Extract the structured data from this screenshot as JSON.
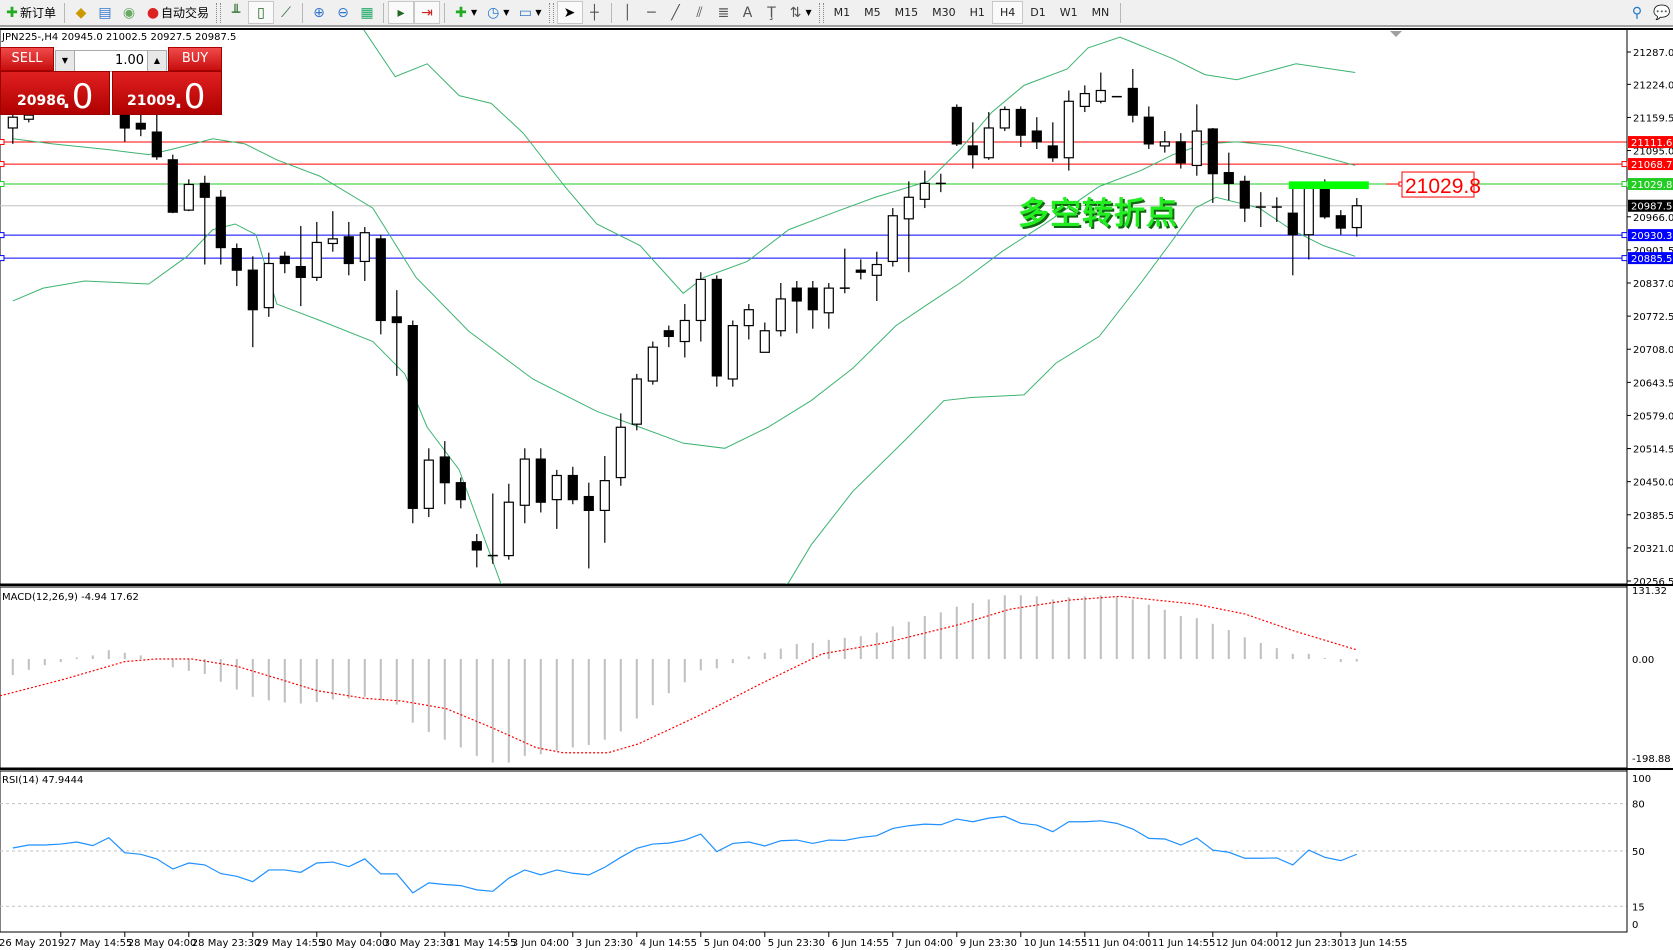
{
  "toolbar": {
    "new_order": "新订单",
    "auto_trading": "自动交易",
    "timeframes": [
      "M1",
      "M5",
      "M15",
      "M30",
      "H1",
      "H4",
      "D1",
      "W1",
      "MN"
    ],
    "active_timeframe": "H4"
  },
  "chart": {
    "header": "JPN225-,H4  20945.0 21002.5 20927.5 20987.5",
    "annotation": "多空转折点",
    "price_tag": "21029.8",
    "colors": {
      "bull_fill": "#ffffff",
      "bear_fill": "#000000",
      "bands": "#3cb371",
      "macd_hist": "#c0c0c0",
      "macd_signal": "#ff0000",
      "rsi": "#1e90ff",
      "highlight_box": "#00ff00"
    },
    "highlight_box": {
      "from_bar": 80,
      "to_bar": 84.5,
      "top": 21035,
      "bottom": 21020
    },
    "price_range": [
      20256.5,
      21287.0
    ],
    "price_axis": [
      "21287.0",
      "21224.0",
      "21159.5",
      "21095.0",
      "20966.0",
      "20901.5",
      "20837.0",
      "20772.5",
      "20708.0",
      "20643.5",
      "20579.0",
      "20514.5",
      "20450.0",
      "20385.5",
      "20321.0",
      "20256.5"
    ],
    "levels": [
      {
        "price": 21111.6,
        "label": "21111.6",
        "color": "#ff0000"
      },
      {
        "price": 21068.7,
        "label": "21068.7",
        "color": "#ff0000"
      },
      {
        "price": 21029.8,
        "label": "21029.8",
        "color": "#22cc22"
      },
      {
        "price": 20987.5,
        "label": "20987.5",
        "color": "#000000",
        "line": "#c0c0c0"
      },
      {
        "price": 20930.3,
        "label": "20930.3",
        "color": "#0000ff"
      },
      {
        "price": 20885.5,
        "label": "20885.5",
        "color": "#0000ff"
      }
    ],
    "candles": [
      [
        21139,
        21175,
        21108,
        21160
      ],
      [
        21156,
        21181,
        21150,
        21164
      ],
      null,
      null,
      null,
      null,
      null,
      [
        21164,
        21181,
        21112,
        21139
      ],
      [
        21148,
        21181,
        21123,
        21137
      ],
      [
        21131,
        21170,
        21077,
        21083
      ],
      [
        21077,
        21087,
        20973,
        20975
      ],
      [
        20979,
        21039,
        20977,
        21029
      ],
      [
        21031,
        21046,
        20873,
        21004
      ],
      [
        21004,
        21018,
        20873,
        20906
      ],
      [
        20904,
        20914,
        20831,
        20862
      ],
      [
        20862,
        20889,
        20712,
        20785
      ],
      [
        20789,
        20896,
        20771,
        20875
      ],
      [
        20889,
        20898,
        20856,
        20875
      ],
      [
        20869,
        20948,
        20792,
        20848
      ],
      [
        20848,
        20956,
        20841,
        20916
      ],
      [
        20914,
        20977,
        20898,
        20923
      ],
      [
        20927,
        20956,
        20852,
        20875
      ],
      [
        20879,
        20946,
        20841,
        20935
      ],
      [
        20923,
        20931,
        20737,
        20764
      ],
      [
        20771,
        20823,
        20656,
        20760
      ],
      [
        20754,
        20764,
        20369,
        20398
      ],
      [
        20398,
        20515,
        20381,
        20492
      ],
      [
        20498,
        20529,
        20406,
        20448
      ],
      [
        20448,
        20458,
        20398,
        20415
      ],
      [
        20333,
        20348,
        20283,
        20317
      ],
      [
        20306,
        20427,
        20290,
        20306
      ],
      [
        20306,
        20446,
        20298,
        20410
      ],
      [
        20404,
        20515,
        20369,
        20494
      ],
      [
        20494,
        20515,
        20390,
        20410
      ],
      [
        20415,
        20473,
        20358,
        20462
      ],
      [
        20462,
        20479,
        20406,
        20415
      ],
      [
        20421,
        20448,
        20281,
        20394
      ],
      [
        20394,
        20500,
        20331,
        20452
      ],
      [
        20458,
        20583,
        20442,
        20556
      ],
      [
        20562,
        20660,
        20550,
        20650
      ],
      [
        20646,
        20723,
        20639,
        20712
      ],
      [
        20744,
        20754,
        20712,
        20733
      ],
      [
        20723,
        20796,
        20692,
        20764
      ],
      [
        20764,
        20858,
        20723,
        20844
      ],
      [
        20844,
        20852,
        20635,
        20656
      ],
      [
        20650,
        20764,
        20635,
        20754
      ],
      [
        20754,
        20796,
        20727,
        20785
      ],
      [
        20702,
        20760,
        20702,
        20744
      ],
      [
        20744,
        20837,
        20733,
        20806
      ],
      [
        20827,
        20841,
        20739,
        20802
      ],
      [
        20827,
        20841,
        20748,
        20785
      ],
      [
        20779,
        20837,
        20748,
        20827
      ],
      [
        20827,
        20904,
        20817,
        20827
      ],
      [
        20862,
        20883,
        20844,
        20858
      ],
      [
        20852,
        20898,
        20802,
        20873
      ],
      [
        20879,
        20983,
        20869,
        20968
      ],
      [
        20962,
        21035,
        20858,
        21004
      ],
      [
        21000,
        21056,
        20983,
        21031
      ],
      [
        21031,
        21050,
        21014,
        21031
      ],
      [
        21179,
        21185,
        21104,
        21108
      ],
      [
        21104,
        21150,
        21060,
        21087
      ],
      [
        21081,
        21170,
        21077,
        21139
      ],
      [
        21139,
        21181,
        21133,
        21175
      ],
      [
        21175,
        21181,
        21102,
        21125
      ],
      [
        21133,
        21160,
        21098,
        21112
      ],
      [
        21104,
        21150,
        21073,
        21081
      ],
      [
        21081,
        21212,
        21056,
        21191
      ],
      [
        21181,
        21222,
        21170,
        21206
      ],
      [
        21191,
        21247,
        21187,
        21212
      ],
      [
        21200,
        21200,
        21200,
        21200
      ],
      [
        21216,
        21254,
        21150,
        21164
      ],
      [
        21160,
        21181,
        21098,
        21108
      ],
      [
        21104,
        21133,
        21091,
        21112
      ],
      [
        21112,
        21129,
        21060,
        21071
      ],
      [
        21066,
        21185,
        21046,
        21133
      ],
      [
        21137,
        21139,
        20993,
        21050
      ],
      [
        21052,
        21091,
        20998,
        21031
      ],
      [
        21035,
        21046,
        20956,
        20983
      ],
      [
        20985,
        21014,
        20946,
        20985
      ],
      [
        20985,
        21004,
        20956,
        20985
      ],
      [
        20973,
        21031,
        20852,
        20931
      ],
      [
        20931,
        21031,
        20883,
        21025
      ],
      [
        21025,
        21039,
        20962,
        20966
      ],
      [
        20968,
        20979,
        20931,
        20944
      ],
      [
        20945,
        21002.5,
        20927.5,
        20987.5
      ]
    ],
    "bollinger": {
      "upper": [
        [
          0,
          21450
        ],
        [
          8,
          21440
        ],
        [
          14.5,
          21420
        ],
        [
          20,
          21420
        ],
        [
          23.9,
          21239
        ],
        [
          25.9,
          21264
        ],
        [
          27.9,
          21202
        ],
        [
          29.9,
          21187
        ],
        [
          31.9,
          21129
        ],
        [
          34.5,
          21025
        ],
        [
          36.5,
          20952
        ],
        [
          39.2,
          20910
        ],
        [
          41.9,
          20817
        ],
        [
          43.2,
          20848
        ],
        [
          45.9,
          20879
        ],
        [
          48.5,
          20941
        ],
        [
          51.2,
          20973
        ],
        [
          53.9,
          21004
        ],
        [
          57.2,
          21035
        ],
        [
          59.2,
          21097
        ],
        [
          61.2,
          21170
        ],
        [
          63.2,
          21222
        ],
        [
          65.9,
          21254
        ],
        [
          67.2,
          21295
        ],
        [
          69.2,
          21316
        ],
        [
          72.5,
          21274
        ],
        [
          74.5,
          21243
        ],
        [
          76.5,
          21233
        ],
        [
          80.2,
          21264
        ],
        [
          83.9,
          21247
        ]
      ],
      "middle": [
        [
          0,
          21118
        ],
        [
          2.5,
          21108
        ],
        [
          5.9,
          21097
        ],
        [
          8.5,
          21087
        ],
        [
          9.9,
          21097
        ],
        [
          12.5,
          21118
        ],
        [
          14.5,
          21108
        ],
        [
          16.5,
          21077
        ],
        [
          19.2,
          21045
        ],
        [
          22.5,
          20983
        ],
        [
          25.2,
          20848
        ],
        [
          28.5,
          20743
        ],
        [
          32.5,
          20650
        ],
        [
          36.5,
          20587
        ],
        [
          39.2,
          20556
        ],
        [
          41.9,
          20525
        ],
        [
          44.5,
          20515
        ],
        [
          47.2,
          20556
        ],
        [
          49.9,
          20608
        ],
        [
          52.5,
          20671
        ],
        [
          55.2,
          20754
        ],
        [
          57.2,
          20796
        ],
        [
          59.2,
          20837
        ],
        [
          61.9,
          20900
        ],
        [
          64.5,
          20952
        ],
        [
          67.9,
          21025
        ],
        [
          70.5,
          21056
        ],
        [
          72.5,
          21087
        ],
        [
          74.5,
          21108
        ],
        [
          76.5,
          21112
        ],
        [
          79.2,
          21104
        ],
        [
          81.9,
          21083
        ],
        [
          83.9,
          21066
        ]
      ],
      "lower": [
        [
          0,
          20802
        ],
        [
          1.9,
          20827
        ],
        [
          4.5,
          20841
        ],
        [
          8.5,
          20835
        ],
        [
          10.9,
          20889
        ],
        [
          12.5,
          20941
        ],
        [
          13.9,
          20952
        ],
        [
          15.2,
          20931
        ],
        [
          16.5,
          20796
        ],
        [
          19.2,
          20764
        ],
        [
          22.5,
          20723
        ],
        [
          24.5,
          20660
        ],
        [
          25.9,
          20556
        ],
        [
          27.9,
          20473
        ],
        [
          30.5,
          20252
        ],
        [
          32.5,
          20202
        ],
        [
          36.5,
          20140
        ],
        [
          40.5,
          20119
        ],
        [
          44.5,
          20161
        ],
        [
          47.2,
          20223
        ],
        [
          48.5,
          20254
        ],
        [
          49.9,
          20327
        ],
        [
          52.5,
          20431
        ],
        [
          55.9,
          20535
        ],
        [
          58.2,
          20608
        ],
        [
          59.9,
          20614
        ],
        [
          63.2,
          20619
        ],
        [
          65.2,
          20681
        ],
        [
          67.9,
          20733
        ],
        [
          70.5,
          20837
        ],
        [
          72.5,
          20921
        ],
        [
          73.9,
          20983
        ],
        [
          75.2,
          21004
        ],
        [
          77.9,
          20983
        ],
        [
          79.9,
          20941
        ],
        [
          81.9,
          20910
        ],
        [
          83.9,
          20889
        ]
      ]
    }
  },
  "trade_panel": {
    "sell": "SELL",
    "buy": "BUY",
    "lot": "1.00",
    "bid_main": "20986",
    "bid_frac": ".0",
    "ask_main": "21009",
    "ask_frac": ".0"
  },
  "macd": {
    "label": "MACD(12,26,9) -4.94 17.62",
    "range": [
      -198.88,
      131.32
    ],
    "axis": [
      "131.32",
      "0.00",
      "-198.88"
    ],
    "histogram": [
      -31,
      -21,
      -12,
      -6,
      3,
      7,
      17,
      12,
      7,
      0,
      -16,
      -23,
      -29,
      -44,
      -59,
      -73,
      -80,
      -84,
      -86,
      -83,
      -78,
      -76,
      -73,
      -80,
      -88,
      -123,
      -141,
      -156,
      -171,
      -187,
      -200,
      -200,
      -187,
      -184,
      -177,
      -171,
      -166,
      -156,
      -140,
      -115,
      -89,
      -66,
      -45,
      -22,
      -18,
      -8,
      5,
      12,
      20,
      29,
      31,
      37,
      41,
      44,
      51,
      63,
      72,
      83,
      90,
      101,
      108,
      115,
      123,
      123,
      121,
      115,
      119,
      121,
      123,
      121,
      115,
      105,
      95,
      83,
      79,
      68,
      56,
      42,
      31,
      21,
      10,
      10,
      2,
      -6,
      -4.94
    ],
    "signal": [
      [
        -0.8,
        -71
      ],
      [
        3.1,
        -40
      ],
      [
        7,
        -5
      ],
      [
        8.9,
        0
      ],
      [
        11.2,
        0
      ],
      [
        14,
        -14
      ],
      [
        17,
        -42
      ],
      [
        19,
        -61
      ],
      [
        22,
        -76
      ],
      [
        24.3,
        -81
      ],
      [
        27.1,
        -96
      ],
      [
        29.9,
        -132
      ],
      [
        32.7,
        -171
      ],
      [
        34.4,
        -181
      ],
      [
        37.2,
        -181
      ],
      [
        39.1,
        -164
      ],
      [
        42.9,
        -109
      ],
      [
        46.8,
        -47
      ],
      [
        50.6,
        10
      ],
      [
        54.5,
        31
      ],
      [
        59.2,
        67
      ],
      [
        62.3,
        96
      ],
      [
        66.1,
        114
      ],
      [
        69.2,
        121
      ],
      [
        73.9,
        106
      ],
      [
        77,
        87
      ],
      [
        80.1,
        54
      ],
      [
        84,
        17.62
      ]
    ]
  },
  "rsi": {
    "label": "RSI(14) 47.9444",
    "levels": [
      80,
      50,
      15
    ],
    "axis": [
      "100",
      "80",
      "50",
      "15",
      "0"
    ],
    "values": [
      51.9,
      53.8,
      53.8,
      54.4,
      55.7,
      53.4,
      58.4,
      48.9,
      47.9,
      45,
      38.6,
      42.4,
      41.2,
      35.7,
      34,
      30.6,
      38,
      38,
      36.5,
      42.4,
      43,
      40.1,
      45,
      35.5,
      35.5,
      23.5,
      29.8,
      28.8,
      28.1,
      25.4,
      24.5,
      32.8,
      38,
      34.9,
      38,
      35.9,
      34.9,
      39.7,
      46,
      51.7,
      54.4,
      55,
      56.9,
      60.7,
      49.6,
      54.8,
      55.7,
      53.2,
      56.5,
      56.9,
      54.8,
      56.9,
      56.7,
      58.6,
      59.7,
      64.3,
      66,
      67,
      66.6,
      70.2,
      68.5,
      70.8,
      71.9,
      67.5,
      66.4,
      62.2,
      68.5,
      68.5,
      69.1,
      67.5,
      63.9,
      58,
      57.6,
      53.8,
      58.2,
      50.6,
      49.2,
      45.4,
      45.4,
      45.6,
      41.2,
      50.6,
      46,
      43.9,
      47.9444
    ]
  },
  "time_axis": [
    "26 May 2019",
    "27 May 14:55",
    "28 May 04:00",
    "28 May 23:30",
    "29 May 14:55",
    "30 May 04:00",
    "30 May 23:30",
    "31 May 14:55",
    "3 Jun 04:00",
    "3 Jun 23:30",
    "4 Jun 14:55",
    "5 Jun 04:00",
    "5 Jun 23:30",
    "6 Jun 14:55",
    "7 Jun 04:00",
    "9 Jun 23:30",
    "10 Jun 14:55",
    "11 Jun 04:00",
    "11 Jun 14:55",
    "12 Jun 04:00",
    "12 Jun 23:30",
    "13 Jun 14:55"
  ]
}
